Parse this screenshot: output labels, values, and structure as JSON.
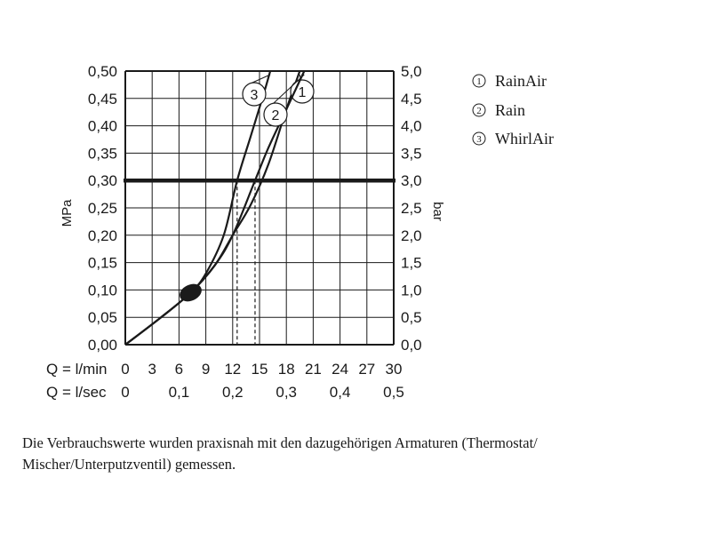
{
  "chart_data": {
    "type": "line",
    "ylabel_left": "MPa",
    "ylabel_right": "bar",
    "y_left_ticks": [
      "0,00",
      "0,05",
      "0,10",
      "0,15",
      "0,20",
      "0,25",
      "0,30",
      "0,35",
      "0,40",
      "0,45",
      "0,50"
    ],
    "y_right_ticks": [
      "0,0",
      "0,5",
      "1,0",
      "1,5",
      "2,0",
      "2,5",
      "3,0",
      "3,5",
      "4,0",
      "4,5",
      "5,0"
    ],
    "ylim": [
      0,
      0.5
    ],
    "xlim": [
      0,
      30
    ],
    "x_lmin_label": "Q = l/min",
    "x_lmin_ticks": [
      "0",
      "3",
      "6",
      "9",
      "12",
      "15",
      "18",
      "21",
      "24",
      "27",
      "30"
    ],
    "x_lsec_label": "Q = l/sec",
    "x_lsec_ticks": [
      "0",
      "0,1",
      "0,2",
      "0,3",
      "0,4",
      "0,5"
    ],
    "reference_line_mpa": 0.3,
    "marker_point": {
      "x": 7.3,
      "y": 0.095
    },
    "series": [
      {
        "name": "RainAir",
        "number": "1",
        "x": [
          0,
          4,
          7.3,
          10,
          12,
          14,
          16,
          18,
          19.5
        ],
        "y": [
          0,
          0.05,
          0.095,
          0.145,
          0.2,
          0.255,
          0.33,
          0.43,
          0.5
        ]
      },
      {
        "name": "Rain",
        "number": "2",
        "x": [
          0,
          4,
          7.3,
          10,
          12,
          14.5,
          16,
          18,
          20
        ],
        "y": [
          0,
          0.05,
          0.095,
          0.145,
          0.2,
          0.3,
          0.36,
          0.43,
          0.5
        ]
      },
      {
        "name": "WhirlAir",
        "number": "3",
        "x": [
          0,
          4,
          7.3,
          9,
          11,
          12.5,
          14,
          15.5,
          16.2
        ],
        "y": [
          0,
          0.05,
          0.095,
          0.13,
          0.2,
          0.3,
          0.38,
          0.46,
          0.5
        ]
      }
    ],
    "flow_at_03mpa": [
      {
        "series": "3",
        "x": 12.5
      },
      {
        "series": "2",
        "x": 14.5
      }
    ]
  },
  "legend": [
    {
      "num": "1",
      "label": "RainAir"
    },
    {
      "num": "2",
      "label": "Rain"
    },
    {
      "num": "3",
      "label": "WhirlAir"
    }
  ],
  "note": "Die Verbrauchswerte wurden praxisnah mit den dazugehörigen Armaturen (Thermostat/ Mischer/Unterputzventil) gemessen."
}
